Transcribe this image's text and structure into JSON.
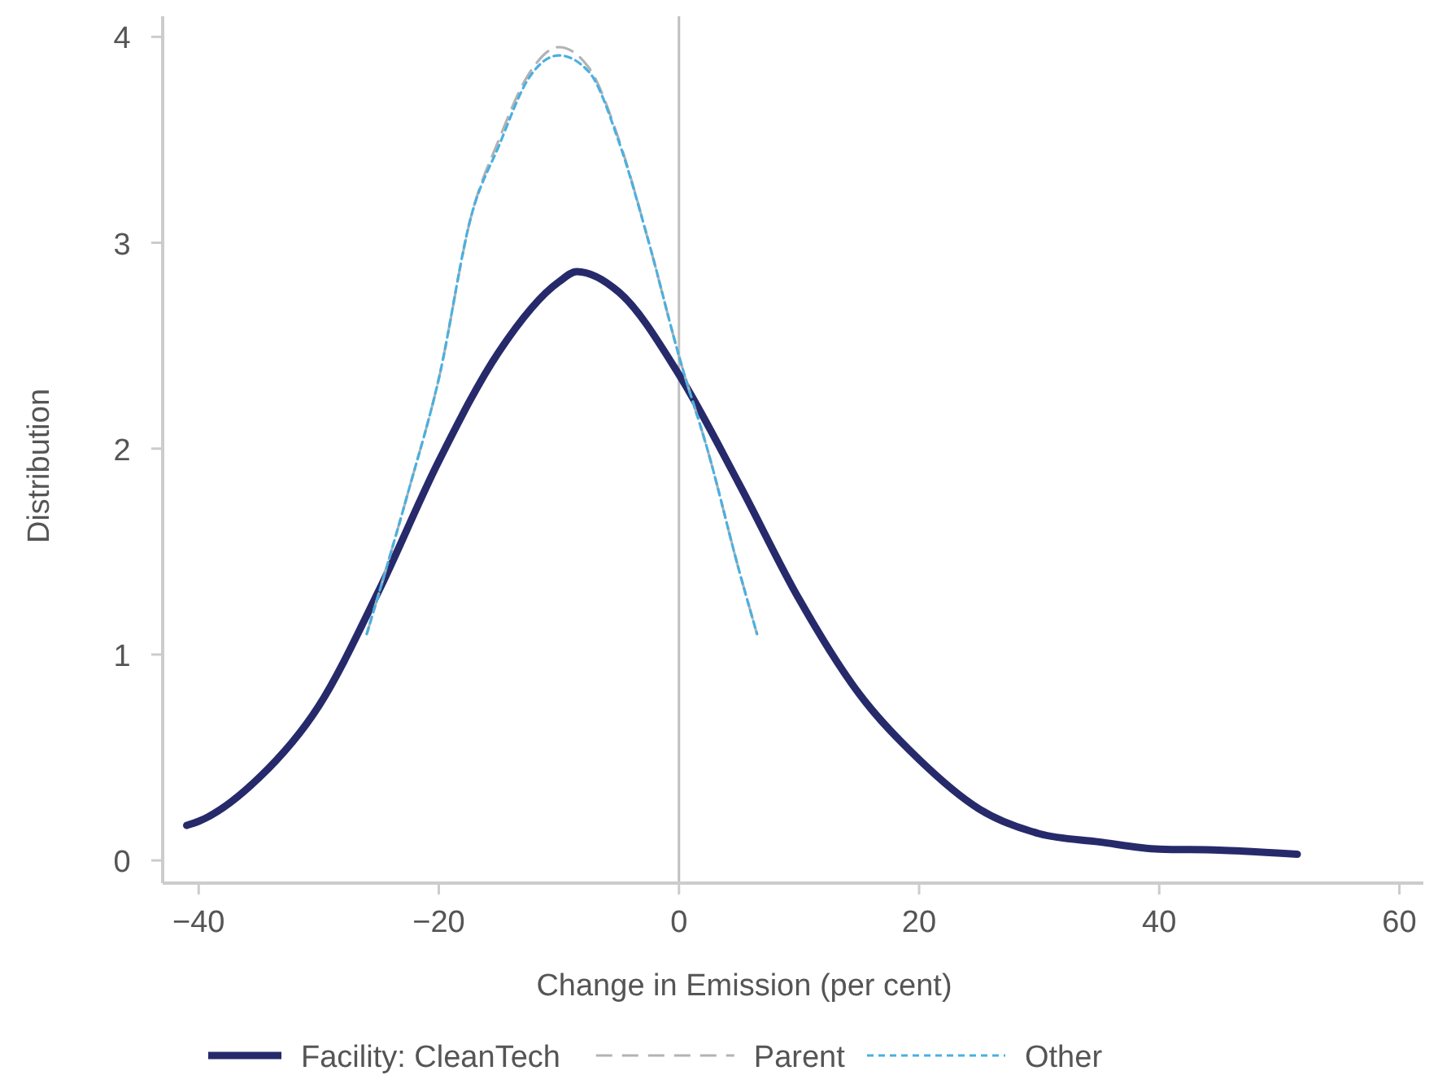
{
  "chart_data": {
    "type": "line",
    "xlabel": "Change in Emission (per cent)",
    "ylabel": "Distribution",
    "xlim": [
      -43,
      62
    ],
    "ylim": [
      -0.11,
      4.1
    ],
    "xticks": [
      {
        "value": -40,
        "label": "−40"
      },
      {
        "value": -20,
        "label": "−20"
      },
      0,
      20,
      40,
      60
    ],
    "yticks": [
      0,
      1,
      2,
      3,
      4
    ],
    "grid": false,
    "legend": "bottom",
    "ref_lines": [
      {
        "axis": "x",
        "value": 0,
        "color": "#bfbfbf"
      }
    ],
    "series": [
      {
        "name": "Facility: CleanTech",
        "color": "#262a6b",
        "line_style": "solid",
        "x": [
          -41,
          -40,
          -35,
          -30,
          -25,
          -20,
          -15,
          -10,
          -8.5,
          -5,
          0,
          5,
          10,
          15,
          20,
          25,
          30,
          35,
          40,
          45,
          51.5
        ],
        "values": [
          0.17,
          0.19,
          0.4,
          0.75,
          1.31,
          1.94,
          2.47,
          2.81,
          2.86,
          2.76,
          2.36,
          1.83,
          1.27,
          0.81,
          0.49,
          0.25,
          0.13,
          0.09,
          0.055,
          0.05,
          0.03
        ]
      },
      {
        "name": "Parent",
        "color": "#b3b3b3",
        "line_style": "dashed",
        "x": [
          -26,
          -22.5,
          -20,
          -17.3,
          -15,
          -12.5,
          -10,
          -7.5,
          -5,
          -2.5,
          0,
          2.5,
          5,
          6.5
        ],
        "values": [
          1.1,
          1.8,
          2.34,
          3.13,
          3.5,
          3.82,
          3.95,
          3.85,
          3.5,
          3.0,
          2.45,
          1.97,
          1.41,
          1.1
        ]
      },
      {
        "name": "Other",
        "color": "#4ab0e0",
        "line_style": "dotted",
        "x": [
          -26,
          -22.5,
          -20,
          -17.3,
          -15,
          -12.5,
          -10,
          -7.5,
          -5,
          -2.5,
          0,
          2.5,
          5,
          6.5
        ],
        "values": [
          1.1,
          1.8,
          2.34,
          3.13,
          3.47,
          3.8,
          3.91,
          3.83,
          3.49,
          3.0,
          2.45,
          1.97,
          1.41,
          1.1
        ]
      }
    ]
  }
}
